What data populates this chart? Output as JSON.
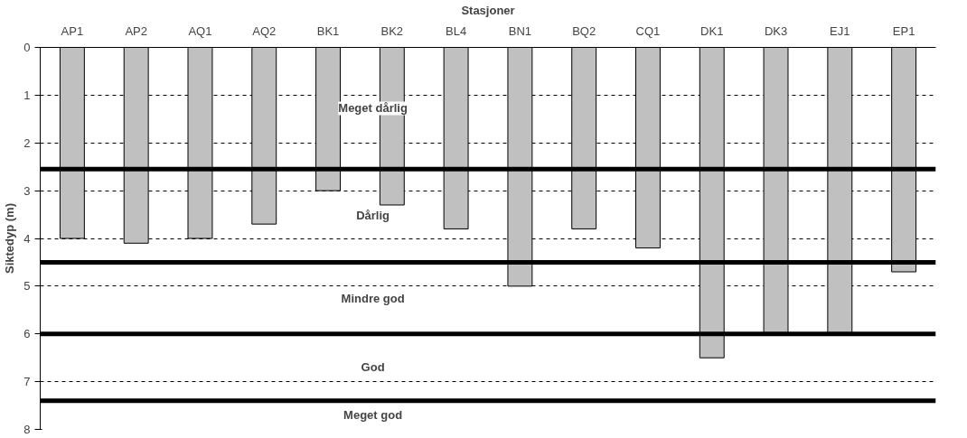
{
  "chart_data": {
    "type": "bar",
    "xlabel": "Stasjoner",
    "ylabel": "Siktedyp (m)",
    "categories": [
      "AP1",
      "AP2",
      "AQ1",
      "AQ2",
      "BK1",
      "BK2",
      "BL4",
      "BN1",
      "BQ2",
      "CQ1",
      "DK1",
      "DK3",
      "EJ1",
      "EP1"
    ],
    "values": [
      4.0,
      4.1,
      4.0,
      3.7,
      3.0,
      3.3,
      3.8,
      5.0,
      3.8,
      4.2,
      6.5,
      6.0,
      6.0,
      4.7
    ],
    "color": "#c0c0c0",
    "ylim": [
      8,
      0
    ],
    "yticks": [
      0,
      1,
      2,
      3,
      4,
      5,
      6,
      7,
      8
    ],
    "grid": "y",
    "line_style": "dashed",
    "ref_lines": [
      {
        "axis": "y",
        "value": 2.55,
        "color": "#000000"
      },
      {
        "axis": "y",
        "value": 4.5,
        "color": "#000000"
      },
      {
        "axis": "y",
        "value": 6.0,
        "color": "#000000"
      },
      {
        "axis": "y",
        "value": 7.4,
        "color": "#000000"
      }
    ],
    "annotations": [
      "Meget dårlig",
      "Dårlig",
      "Mindre god",
      "God",
      "Meget god"
    ]
  }
}
